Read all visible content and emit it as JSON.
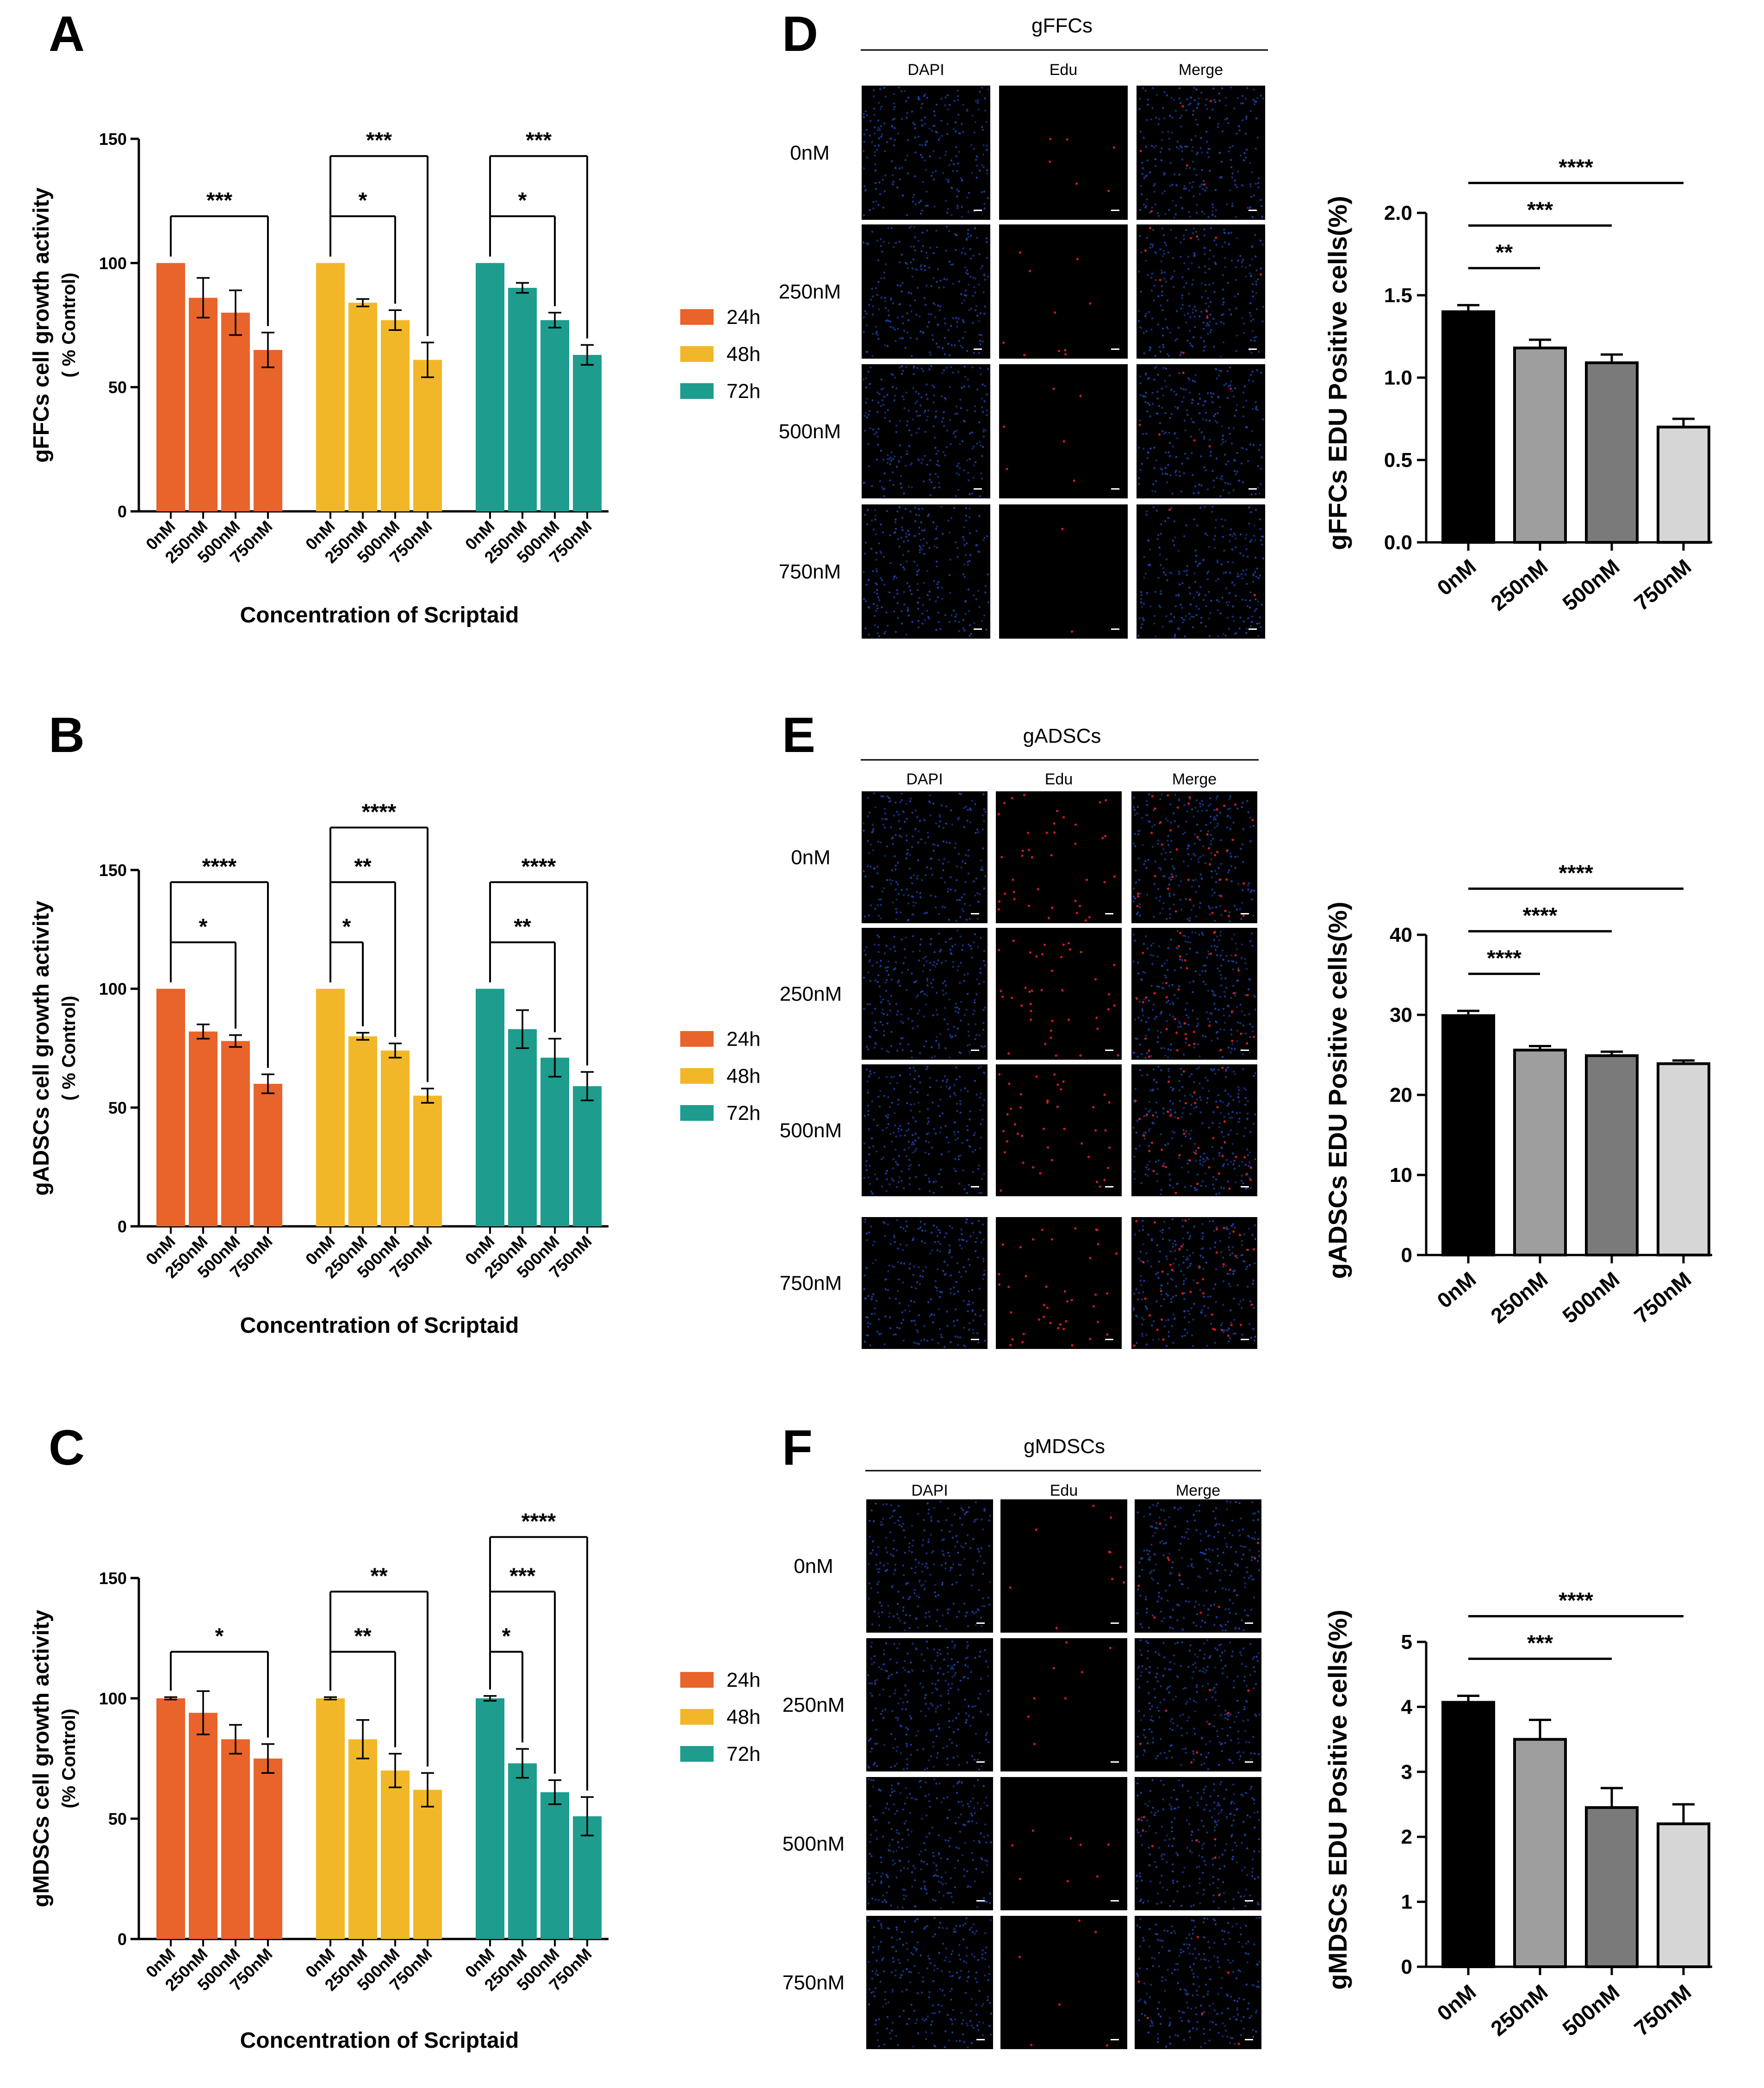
{
  "growth_panels": [
    {
      "label": "A",
      "ylabel": "gFFCs cell growth activity",
      "ylabel_sub": "( % Control)",
      "xlabel": "Concentration of Scriptaid",
      "legend": [
        "24h",
        "48h",
        "72h"
      ]
    },
    {
      "label": "B",
      "ylabel": "gADSCs cell growth activity",
      "ylabel_sub": "( % Control)",
      "xlabel": "Concentration of Scriptaid",
      "legend": [
        "24h",
        "48h",
        "72h"
      ]
    },
    {
      "label": "C",
      "ylabel": "gMDSCs cell growth activity",
      "ylabel_sub": "(% Control)",
      "xlabel": "Concentration of Scriptaid",
      "legend": [
        "24h",
        "48h",
        "72h"
      ]
    }
  ],
  "micro_panels": [
    {
      "label": "D",
      "title": "gFFCs",
      "columns": [
        "DAPI",
        "Edu",
        "Merge"
      ],
      "rows": [
        "0nM",
        "250nM",
        "500nM",
        "750nM"
      ],
      "ylabel": "gFFCs EDU Positive cells(%)"
    },
    {
      "label": "E",
      "title": "gADSCs",
      "columns": [
        "DAPI",
        "Edu",
        "Merge"
      ],
      "rows": [
        "0nM",
        "250nM",
        "500nM",
        "750nM"
      ],
      "ylabel": "gADSCs EDU Positive cells(%)"
    },
    {
      "label": "F",
      "title": "gMDSCs",
      "columns": [
        "DAPI",
        "Edu",
        "Merge"
      ],
      "rows": [
        "0nM",
        "250nM",
        "500nM",
        "750nM"
      ],
      "ylabel": "gMDSCs EDU Positive cells(%)"
    }
  ],
  "colors": {
    "24h": "#E8642A",
    "48h": "#F2B729",
    "72h": "#1E9C8E",
    "edu_bars": [
      "#000000",
      "#9E9E9E",
      "#7A7A7A",
      "#D6D6D6"
    ],
    "dapi": "#1E46B4",
    "edu": "#E0202A"
  },
  "chart_data": [
    {
      "type": "bar",
      "panel": "A",
      "categories": [
        "0nM",
        "250nM",
        "500nM",
        "750nM"
      ],
      "ylim": [
        0,
        150
      ],
      "yticks": [
        0,
        50,
        100,
        150
      ],
      "series": [
        {
          "name": "24h",
          "values": [
            100,
            86,
            80,
            65
          ],
          "errors": [
            0,
            8,
            9,
            7
          ]
        },
        {
          "name": "48h",
          "values": [
            100,
            84,
            77,
            61
          ],
          "errors": [
            0,
            1.5,
            4,
            7
          ]
        },
        {
          "name": "72h",
          "values": [
            100,
            90,
            77,
            63
          ],
          "errors": [
            0,
            2,
            3,
            4
          ]
        }
      ],
      "significance": [
        {
          "series": 0,
          "from": 0,
          "to": 3,
          "label": "***",
          "level": 0
        },
        {
          "series": 1,
          "from": 0,
          "to": 2,
          "label": "*",
          "level": 0
        },
        {
          "series": 1,
          "from": 0,
          "to": 3,
          "label": "***",
          "level": 1
        },
        {
          "series": 2,
          "from": 0,
          "to": 2,
          "label": "*",
          "level": 0
        },
        {
          "series": 2,
          "from": 0,
          "to": 3,
          "label": "***",
          "level": 1
        }
      ]
    },
    {
      "type": "bar",
      "panel": "B",
      "categories": [
        "0nM",
        "250nM",
        "500nM",
        "750nM"
      ],
      "ylim": [
        0,
        150
      ],
      "yticks": [
        0,
        50,
        100,
        150
      ],
      "series": [
        {
          "name": "24h",
          "values": [
            100,
            82,
            78,
            60
          ],
          "errors": [
            0,
            3,
            2.5,
            4
          ]
        },
        {
          "name": "48h",
          "values": [
            100,
            80,
            74,
            55
          ],
          "errors": [
            0,
            1.5,
            3,
            3
          ]
        },
        {
          "name": "72h",
          "values": [
            100,
            83,
            71,
            59
          ],
          "errors": [
            0,
            8,
            8,
            6
          ]
        }
      ],
      "significance": [
        {
          "series": 0,
          "from": 0,
          "to": 2,
          "label": "*",
          "level": 0
        },
        {
          "series": 0,
          "from": 0,
          "to": 3,
          "label": "****",
          "level": 1
        },
        {
          "series": 1,
          "from": 0,
          "to": 1,
          "label": "*",
          "level": 0
        },
        {
          "series": 1,
          "from": 0,
          "to": 2,
          "label": "**",
          "level": 1
        },
        {
          "series": 1,
          "from": 0,
          "to": 3,
          "label": "****",
          "level": 2
        },
        {
          "series": 2,
          "from": 0,
          "to": 2,
          "label": "**",
          "level": 0
        },
        {
          "series": 2,
          "from": 0,
          "to": 3,
          "label": "****",
          "level": 1
        }
      ]
    },
    {
      "type": "bar",
      "panel": "C",
      "categories": [
        "0nM",
        "250nM",
        "500nM",
        "750nM"
      ],
      "ylim": [
        0,
        150
      ],
      "yticks": [
        0,
        50,
        100,
        150
      ],
      "series": [
        {
          "name": "24h",
          "values": [
            100,
            94,
            83,
            75
          ],
          "errors": [
            0.5,
            9,
            6,
            6
          ]
        },
        {
          "name": "48h",
          "values": [
            100,
            83,
            70,
            62
          ],
          "errors": [
            0.5,
            8,
            7,
            7
          ]
        },
        {
          "name": "72h",
          "values": [
            100,
            73,
            61,
            51
          ],
          "errors": [
            1,
            6,
            5,
            8
          ]
        }
      ],
      "significance": [
        {
          "series": 0,
          "from": 0,
          "to": 3,
          "label": "*",
          "level": 0
        },
        {
          "series": 1,
          "from": 0,
          "to": 2,
          "label": "**",
          "level": 0
        },
        {
          "series": 1,
          "from": 0,
          "to": 3,
          "label": "**",
          "level": 1
        },
        {
          "series": 2,
          "from": 0,
          "to": 1,
          "label": "*",
          "level": 0
        },
        {
          "series": 2,
          "from": 0,
          "to": 2,
          "label": "***",
          "level": 1
        },
        {
          "series": 2,
          "from": 0,
          "to": 3,
          "label": "****",
          "level": 2
        }
      ]
    },
    {
      "type": "bar",
      "panel": "D",
      "categories": [
        "0nM",
        "250nM",
        "500nM",
        "750nM"
      ],
      "ylim": [
        0,
        2.0
      ],
      "yticks": [
        0.0,
        0.5,
        1.0,
        1.5,
        2.0
      ],
      "tick_format": 1,
      "values": [
        1.4,
        1.18,
        1.09,
        0.7
      ],
      "errors": [
        0.04,
        0.05,
        0.05,
        0.05
      ],
      "significance": [
        {
          "from": 0,
          "to": 1,
          "label": "**",
          "level": 0
        },
        {
          "from": 0,
          "to": 2,
          "label": "***",
          "level": 1
        },
        {
          "from": 0,
          "to": 3,
          "label": "****",
          "level": 2
        }
      ]
    },
    {
      "type": "bar",
      "panel": "E",
      "categories": [
        "0nM",
        "250nM",
        "500nM",
        "750nM"
      ],
      "ylim": [
        0,
        40
      ],
      "yticks": [
        0,
        10,
        20,
        30,
        40
      ],
      "tick_format": 0,
      "values": [
        29.9,
        25.6,
        24.9,
        23.9
      ],
      "errors": [
        0.6,
        0.5,
        0.5,
        0.4
      ],
      "significance": [
        {
          "from": 0,
          "to": 1,
          "label": "****",
          "level": 0
        },
        {
          "from": 0,
          "to": 2,
          "label": "****",
          "level": 1
        },
        {
          "from": 0,
          "to": 3,
          "label": "****",
          "level": 2
        }
      ]
    },
    {
      "type": "bar",
      "panel": "F",
      "categories": [
        "0nM",
        "250nM",
        "500nM",
        "750nM"
      ],
      "ylim": [
        0,
        5
      ],
      "yticks": [
        0,
        1,
        2,
        3,
        4,
        5
      ],
      "tick_format": 0,
      "values": [
        4.07,
        3.5,
        2.45,
        2.2
      ],
      "errors": [
        0.1,
        0.3,
        0.3,
        0.3
      ],
      "significance": [
        {
          "from": 0,
          "to": 2,
          "label": "***",
          "level": 0
        },
        {
          "from": 0,
          "to": 3,
          "label": "****",
          "level": 1
        }
      ]
    }
  ]
}
